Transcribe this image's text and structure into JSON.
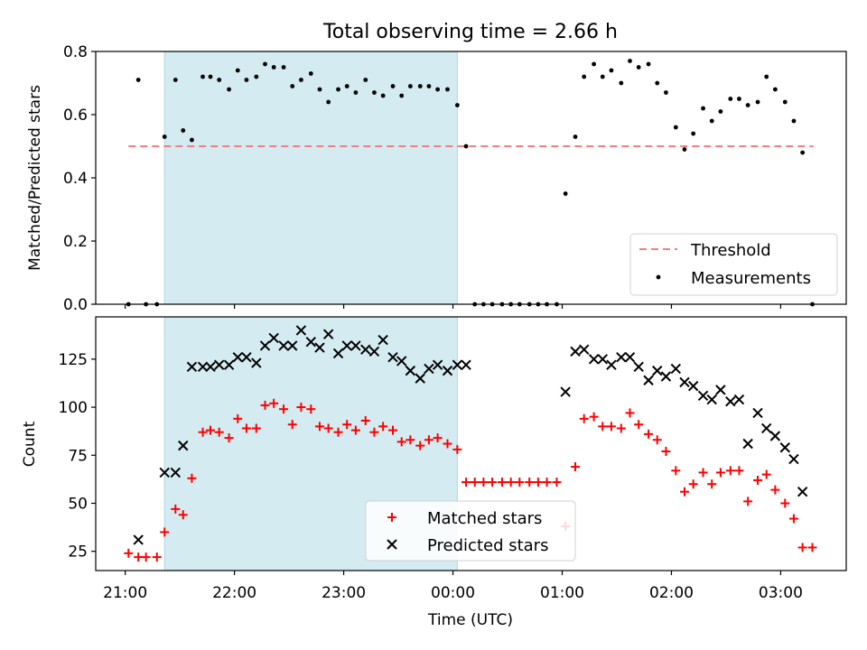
{
  "figure": {
    "title": "Total observing time = 2.66 h",
    "xlabel": "Time (UTC)",
    "x_ticks": [
      "21:00",
      "22:00",
      "23:00",
      "00:00",
      "01:00",
      "02:00",
      "03:00"
    ]
  },
  "colors": {
    "span": "#add8e6",
    "threshold": "#f08080",
    "measurements": "#000000",
    "matched": "#ff0000",
    "predicted": "#000000"
  },
  "chart_data": [
    {
      "type": "scatter",
      "panel": "top",
      "ylabel": "Matched/Predicted stars",
      "x_unit": "hours since 21:00 UTC",
      "xlim": [
        -0.27,
        6.6
      ],
      "ylim": [
        0,
        0.8
      ],
      "y_ticks": [
        "0.0",
        "0.2",
        "0.4",
        "0.6",
        "0.8"
      ],
      "shaded_span": [
        0.36,
        3.04
      ],
      "legend": {
        "placement": "lower right",
        "entries": [
          "Threshold",
          "Measurements"
        ]
      },
      "threshold": {
        "name": "Threshold",
        "y": 0.5,
        "x_range": [
          0.03,
          6.3
        ]
      },
      "series": [
        {
          "name": "Measurements",
          "marker": "dot",
          "points": [
            [
              0.03,
              0
            ],
            [
              0.12,
              0.71
            ],
            [
              0.19,
              0
            ],
            [
              0.29,
              0
            ],
            [
              0.36,
              0.53
            ],
            [
              0.46,
              0.71
            ],
            [
              0.53,
              0.55
            ],
            [
              0.61,
              0.52
            ],
            [
              0.71,
              0.72
            ],
            [
              0.78,
              0.72
            ],
            [
              0.86,
              0.71
            ],
            [
              0.95,
              0.68
            ],
            [
              1.03,
              0.74
            ],
            [
              1.11,
              0.71
            ],
            [
              1.2,
              0.72
            ],
            [
              1.28,
              0.76
            ],
            [
              1.36,
              0.75
            ],
            [
              1.45,
              0.75
            ],
            [
              1.53,
              0.69
            ],
            [
              1.61,
              0.71
            ],
            [
              1.7,
              0.73
            ],
            [
              1.78,
              0.68
            ],
            [
              1.86,
              0.64
            ],
            [
              1.95,
              0.68
            ],
            [
              2.03,
              0.69
            ],
            [
              2.11,
              0.67
            ],
            [
              2.2,
              0.71
            ],
            [
              2.28,
              0.67
            ],
            [
              2.36,
              0.66
            ],
            [
              2.45,
              0.69
            ],
            [
              2.53,
              0.66
            ],
            [
              2.61,
              0.69
            ],
            [
              2.7,
              0.69
            ],
            [
              2.78,
              0.69
            ],
            [
              2.86,
              0.68
            ],
            [
              2.95,
              0.68
            ],
            [
              3.04,
              0.63
            ],
            [
              3.12,
              0.5
            ],
            [
              3.2,
              0
            ],
            [
              3.28,
              0
            ],
            [
              3.36,
              0
            ],
            [
              3.45,
              0
            ],
            [
              3.53,
              0
            ],
            [
              3.61,
              0
            ],
            [
              3.7,
              0
            ],
            [
              3.78,
              0
            ],
            [
              3.86,
              0
            ],
            [
              3.95,
              0
            ],
            [
              4.03,
              0.35
            ],
            [
              4.12,
              0.53
            ],
            [
              4.2,
              0.72
            ],
            [
              4.29,
              0.76
            ],
            [
              4.37,
              0.72
            ],
            [
              4.45,
              0.74
            ],
            [
              4.54,
              0.7
            ],
            [
              4.62,
              0.77
            ],
            [
              4.7,
              0.75
            ],
            [
              4.79,
              0.76
            ],
            [
              4.87,
              0.7
            ],
            [
              4.95,
              0.67
            ],
            [
              5.04,
              0.56
            ],
            [
              5.12,
              0.49
            ],
            [
              5.2,
              0.54
            ],
            [
              5.29,
              0.62
            ],
            [
              5.37,
              0.58
            ],
            [
              5.45,
              0.61
            ],
            [
              5.54,
              0.65
            ],
            [
              5.62,
              0.65
            ],
            [
              5.7,
              0.63
            ],
            [
              5.79,
              0.64
            ],
            [
              5.87,
              0.72
            ],
            [
              5.95,
              0.68
            ],
            [
              6.04,
              0.64
            ],
            [
              6.12,
              0.58
            ],
            [
              6.2,
              0.48
            ],
            [
              6.29,
              0
            ]
          ]
        }
      ]
    },
    {
      "type": "scatter",
      "panel": "bottom",
      "ylabel": "Count",
      "x_unit": "hours since 21:00 UTC",
      "xlim": [
        -0.27,
        6.6
      ],
      "ylim": [
        15,
        147
      ],
      "y_ticks": [
        "25",
        "50",
        "75",
        "100",
        "125"
      ],
      "shaded_span": [
        0.36,
        3.04
      ],
      "legend": {
        "placement": "lower center",
        "entries": [
          "Matched stars",
          "Predicted stars"
        ]
      },
      "series": [
        {
          "name": "Matched stars",
          "marker": "plus",
          "points": [
            [
              0.03,
              24
            ],
            [
              0.12,
              22
            ],
            [
              0.19,
              22
            ],
            [
              0.29,
              22
            ],
            [
              0.36,
              35
            ],
            [
              0.46,
              47
            ],
            [
              0.53,
              44
            ],
            [
              0.61,
              63
            ],
            [
              0.71,
              87
            ],
            [
              0.78,
              88
            ],
            [
              0.86,
              87
            ],
            [
              0.95,
              84
            ],
            [
              1.03,
              94
            ],
            [
              1.11,
              89
            ],
            [
              1.2,
              89
            ],
            [
              1.28,
              101
            ],
            [
              1.36,
              102
            ],
            [
              1.45,
              99
            ],
            [
              1.53,
              91
            ],
            [
              1.61,
              100
            ],
            [
              1.7,
              99
            ],
            [
              1.78,
              90
            ],
            [
              1.86,
              89
            ],
            [
              1.95,
              87
            ],
            [
              2.03,
              91
            ],
            [
              2.11,
              88
            ],
            [
              2.2,
              93
            ],
            [
              2.28,
              87
            ],
            [
              2.36,
              90
            ],
            [
              2.45,
              88
            ],
            [
              2.53,
              82
            ],
            [
              2.61,
              83
            ],
            [
              2.7,
              80
            ],
            [
              2.78,
              83
            ],
            [
              2.86,
              84
            ],
            [
              2.95,
              81
            ],
            [
              3.04,
              78
            ],
            [
              3.12,
              61
            ],
            [
              3.2,
              61
            ],
            [
              3.28,
              61
            ],
            [
              3.36,
              61
            ],
            [
              3.45,
              61
            ],
            [
              3.53,
              61
            ],
            [
              3.61,
              61
            ],
            [
              3.7,
              61
            ],
            [
              3.78,
              61
            ],
            [
              3.86,
              61
            ],
            [
              3.95,
              61
            ],
            [
              4.03,
              38
            ],
            [
              4.12,
              69
            ],
            [
              4.2,
              94
            ],
            [
              4.29,
              95
            ],
            [
              4.37,
              90
            ],
            [
              4.45,
              90
            ],
            [
              4.54,
              89
            ],
            [
              4.62,
              97
            ],
            [
              4.7,
              91
            ],
            [
              4.79,
              86
            ],
            [
              4.87,
              83
            ],
            [
              4.95,
              77
            ],
            [
              5.04,
              67
            ],
            [
              5.12,
              56
            ],
            [
              5.2,
              60
            ],
            [
              5.29,
              66
            ],
            [
              5.37,
              60
            ],
            [
              5.45,
              66
            ],
            [
              5.54,
              67
            ],
            [
              5.62,
              67
            ],
            [
              5.7,
              51
            ],
            [
              5.79,
              62
            ],
            [
              5.87,
              65
            ],
            [
              5.95,
              57
            ],
            [
              6.04,
              50
            ],
            [
              6.12,
              42
            ],
            [
              6.2,
              27
            ],
            [
              6.29,
              27
            ]
          ]
        },
        {
          "name": "Predicted stars",
          "marker": "cross",
          "points": [
            [
              0.12,
              31
            ],
            [
              0.36,
              66
            ],
            [
              0.46,
              66
            ],
            [
              0.53,
              80
            ],
            [
              0.61,
              121
            ],
            [
              0.71,
              121
            ],
            [
              0.78,
              121
            ],
            [
              0.86,
              122
            ],
            [
              0.95,
              122
            ],
            [
              1.03,
              126
            ],
            [
              1.11,
              126
            ],
            [
              1.2,
              123
            ],
            [
              1.28,
              132
            ],
            [
              1.36,
              136
            ],
            [
              1.45,
              132
            ],
            [
              1.53,
              132
            ],
            [
              1.61,
              140
            ],
            [
              1.7,
              134
            ],
            [
              1.78,
              131
            ],
            [
              1.86,
              138
            ],
            [
              1.95,
              128
            ],
            [
              2.03,
              132
            ],
            [
              2.11,
              132
            ],
            [
              2.2,
              130
            ],
            [
              2.28,
              129
            ],
            [
              2.36,
              135
            ],
            [
              2.45,
              126
            ],
            [
              2.53,
              124
            ],
            [
              2.61,
              119
            ],
            [
              2.7,
              115
            ],
            [
              2.78,
              120
            ],
            [
              2.86,
              122
            ],
            [
              2.95,
              119
            ],
            [
              3.04,
              122
            ],
            [
              3.12,
              122
            ],
            [
              4.03,
              108
            ],
            [
              4.12,
              129
            ],
            [
              4.2,
              130
            ],
            [
              4.29,
              125
            ],
            [
              4.37,
              125
            ],
            [
              4.45,
              122
            ],
            [
              4.54,
              126
            ],
            [
              4.62,
              126
            ],
            [
              4.7,
              121
            ],
            [
              4.79,
              114
            ],
            [
              4.87,
              119
            ],
            [
              4.95,
              116
            ],
            [
              5.04,
              120
            ],
            [
              5.12,
              113
            ],
            [
              5.2,
              111
            ],
            [
              5.29,
              106
            ],
            [
              5.37,
              104
            ],
            [
              5.45,
              109
            ],
            [
              5.54,
              103
            ],
            [
              5.62,
              104
            ],
            [
              5.7,
              81
            ],
            [
              5.79,
              97
            ],
            [
              5.87,
              89
            ],
            [
              5.95,
              85
            ],
            [
              6.04,
              79
            ],
            [
              6.12,
              73
            ],
            [
              6.2,
              56
            ]
          ]
        }
      ]
    }
  ]
}
